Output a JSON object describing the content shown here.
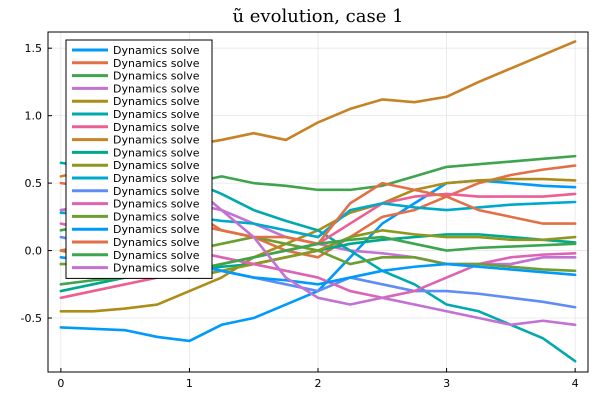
{
  "chart_data": {
    "type": "line",
    "title": "ũ evolution, case 1",
    "xlabel": "",
    "ylabel": "",
    "xlim": [
      -0.1,
      4.1
    ],
    "ylim": [
      -0.9,
      1.62
    ],
    "xticks": [
      0,
      1,
      2,
      3,
      4
    ],
    "xtick_labels": [
      "0",
      "1",
      "2",
      "3",
      "4"
    ],
    "yticks": [
      -0.5,
      0.0,
      0.5,
      1.0,
      1.5
    ],
    "ytick_labels": [
      "-0.5",
      "0.0",
      "0.5",
      "1.0",
      "1.5"
    ],
    "grid": true,
    "legend_position": "top-left",
    "x": [
      0,
      0.25,
      0.5,
      0.75,
      1.0,
      1.25,
      1.5,
      1.75,
      2.0,
      2.25,
      2.5,
      2.75,
      3.0,
      3.25,
      3.5,
      3.75,
      4.0
    ],
    "series": [
      {
        "name": "Dynamics solve",
        "color": "#009AFA",
        "values": [
          -0.57,
          -0.58,
          -0.59,
          -0.64,
          -0.67,
          -0.55,
          -0.5,
          -0.4,
          -0.3,
          -0.05,
          0.2,
          0.35,
          0.5,
          0.52,
          0.5,
          0.48,
          0.47
        ]
      },
      {
        "name": "Dynamics solve",
        "color": "#E36F47",
        "values": [
          0.5,
          0.47,
          0.42,
          0.4,
          0.3,
          0.15,
          0.1,
          0.0,
          -0.05,
          0.1,
          0.25,
          0.3,
          0.4,
          0.5,
          0.56,
          0.6,
          0.63
        ]
      },
      {
        "name": "Dynamics solve",
        "color": "#3EA44E",
        "values": [
          0.15,
          0.2,
          0.25,
          0.3,
          0.5,
          0.55,
          0.5,
          0.48,
          0.45,
          0.45,
          0.48,
          0.55,
          0.62,
          0.64,
          0.66,
          0.68,
          0.7
        ]
      },
      {
        "name": "Dynamics solve",
        "color": "#C371D2",
        "values": [
          0.3,
          0.32,
          0.35,
          0.38,
          0.35,
          0.3,
          0.2,
          0.1,
          0.05,
          0.0,
          -0.02,
          -0.05,
          -0.1,
          -0.1,
          -0.1,
          -0.05,
          -0.05
        ]
      },
      {
        "name": "Dynamics solve",
        "color": "#AC8D18",
        "values": [
          -0.45,
          -0.45,
          -0.43,
          -0.4,
          -0.3,
          -0.2,
          -0.05,
          0.05,
          0.15,
          0.28,
          0.35,
          0.45,
          0.5,
          0.52,
          0.53,
          0.53,
          0.52
        ]
      },
      {
        "name": "Dynamics solve",
        "color": "#00A9AD",
        "values": [
          0.65,
          0.62,
          0.58,
          0.55,
          0.52,
          0.42,
          0.3,
          0.22,
          0.15,
          0.0,
          -0.15,
          -0.25,
          -0.4,
          -0.45,
          -0.55,
          -0.65,
          -0.82
        ]
      },
      {
        "name": "Dynamics solve",
        "color": "#ED5E93",
        "values": [
          -0.35,
          -0.3,
          -0.25,
          -0.2,
          -0.15,
          -0.1,
          -0.05,
          0.0,
          0.05,
          0.2,
          0.35,
          0.4,
          0.42,
          0.4,
          0.4,
          0.4,
          0.42
        ]
      },
      {
        "name": "Dynamics solve",
        "color": "#C68225",
        "values": [
          0.55,
          0.6,
          0.65,
          0.72,
          0.78,
          0.82,
          0.87,
          0.82,
          0.95,
          1.05,
          1.12,
          1.1,
          1.14,
          1.25,
          1.35,
          1.45,
          1.55
        ]
      },
      {
        "name": "Dynamics solve",
        "color": "#00A98D",
        "values": [
          -0.3,
          -0.25,
          -0.2,
          -0.18,
          -0.15,
          -0.12,
          -0.1,
          -0.05,
          0.0,
          0.05,
          0.08,
          0.1,
          0.12,
          0.12,
          0.1,
          0.08,
          0.06
        ]
      },
      {
        "name": "Dynamics solve",
        "color": "#8E971E",
        "values": [
          0.0,
          -0.05,
          -0.1,
          -0.15,
          -0.2,
          -0.15,
          -0.1,
          -0.05,
          0.0,
          0.1,
          0.15,
          0.12,
          0.1,
          0.1,
          0.08,
          0.08,
          0.1
        ]
      },
      {
        "name": "Dynamics solve",
        "color": "#00A8CB",
        "values": [
          0.28,
          0.27,
          0.26,
          0.25,
          0.25,
          0.22,
          0.2,
          0.15,
          0.1,
          0.3,
          0.35,
          0.32,
          0.3,
          0.32,
          0.34,
          0.35,
          0.36
        ]
      },
      {
        "name": "Dynamics solve",
        "color": "#608CF6",
        "values": [
          0.1,
          0.05,
          0.0,
          -0.05,
          -0.1,
          -0.15,
          -0.2,
          -0.25,
          -0.3,
          -0.2,
          -0.25,
          -0.3,
          -0.3,
          -0.32,
          -0.35,
          -0.38,
          -0.42
        ]
      },
      {
        "name": "Dynamics solve",
        "color": "#DD64B4",
        "values": [
          0.2,
          0.15,
          0.1,
          0.05,
          0.0,
          -0.05,
          -0.1,
          -0.15,
          -0.2,
          -0.3,
          -0.35,
          -0.3,
          -0.2,
          -0.1,
          -0.05,
          -0.03,
          -0.02
        ]
      },
      {
        "name": "Dynamics solve",
        "color": "#6C9E33",
        "values": [
          -0.1,
          -0.1,
          -0.08,
          -0.05,
          0.0,
          0.05,
          0.1,
          0.05,
          0.0,
          -0.1,
          -0.05,
          -0.05,
          -0.1,
          -0.1,
          -0.12,
          -0.14,
          -0.15
        ]
      },
      {
        "name": "Dynamics solve",
        "color": "#009AFA",
        "values": [
          -0.05,
          -0.08,
          -0.1,
          -0.12,
          -0.1,
          -0.15,
          -0.2,
          -0.22,
          -0.25,
          -0.2,
          -0.15,
          -0.12,
          -0.1,
          -0.12,
          -0.14,
          -0.16,
          -0.18
        ]
      },
      {
        "name": "Dynamics solve",
        "color": "#E36F47",
        "values": [
          0.0,
          0.05,
          0.1,
          0.15,
          0.2,
          0.15,
          0.1,
          0.1,
          0.05,
          0.35,
          0.5,
          0.45,
          0.4,
          0.3,
          0.25,
          0.2,
          0.2
        ]
      },
      {
        "name": "Dynamics solve",
        "color": "#3EA44E",
        "values": [
          -0.25,
          -0.22,
          -0.2,
          -0.18,
          -0.15,
          -0.1,
          -0.05,
          0.0,
          0.05,
          0.08,
          0.1,
          0.05,
          0.0,
          0.02,
          0.03,
          0.04,
          0.05
        ]
      },
      {
        "name": "Dynamics solve",
        "color": "#C371D2",
        "values": [
          0.3,
          0.35,
          0.4,
          0.45,
          0.5,
          0.3,
          0.1,
          -0.2,
          -0.35,
          -0.4,
          -0.35,
          -0.4,
          -0.45,
          -0.5,
          -0.55,
          -0.52,
          -0.55
        ]
      }
    ]
  }
}
